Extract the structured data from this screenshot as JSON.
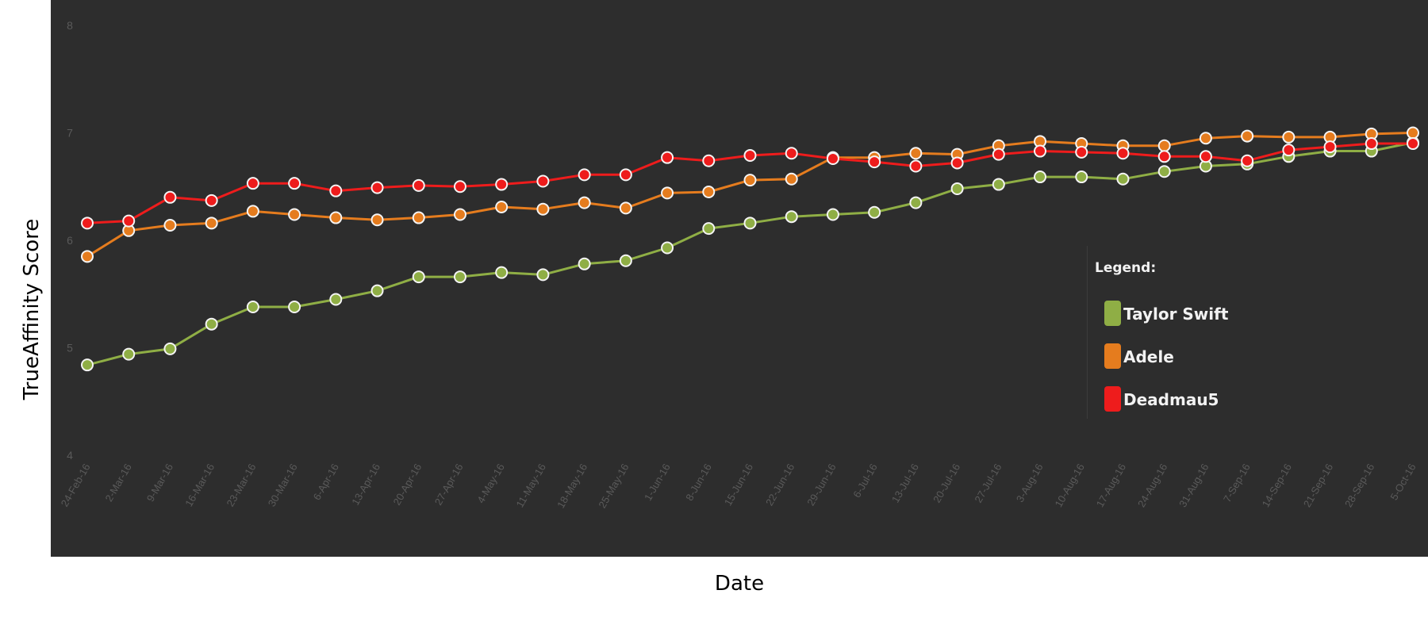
{
  "chart_data": {
    "type": "line",
    "xlabel": "Date",
    "ylabel": "TrueAffinity Score",
    "ylim": [
      4,
      8
    ],
    "yticks": [
      "4",
      "5",
      "6",
      "7",
      "8"
    ],
    "grid": false,
    "legend_title": "Legend:",
    "legend_position": "right",
    "background_color": "#2d2d2d",
    "categories": [
      "24-Feb-16",
      "2-Mar-16",
      "9-Mar-16",
      "16-Mar-16",
      "23-Mar-16",
      "30-Mar-16",
      "6-Apr-16",
      "13-Apr-16",
      "20-Apr-16",
      "27-Apr-16",
      "4-May-16",
      "11-May-16",
      "18-May-16",
      "25-May-16",
      "1-Jun-16",
      "8-Jun-16",
      "15-Jun-16",
      "22-Jun-16",
      "29-Jun-16",
      "6-Jul-16",
      "13-Jul-16",
      "20-Jul-16",
      "27-Jul-16",
      "3-Aug-16",
      "10-Aug-16",
      "17-Aug-16",
      "24-Aug-16",
      "31-Aug-16",
      "7-Sep-16",
      "14-Sep-16",
      "21-Sep-16",
      "28-Sep-16",
      "5-Oct-16"
    ],
    "series": [
      {
        "name": "Taylor Swift",
        "color": "#8fae45",
        "values": [
          4.84,
          4.94,
          4.99,
          5.22,
          5.38,
          5.38,
          5.45,
          5.53,
          5.66,
          5.66,
          5.7,
          5.68,
          5.78,
          5.81,
          5.93,
          6.11,
          6.16,
          6.22,
          6.24,
          6.26,
          6.35,
          6.48,
          6.52,
          6.59,
          6.59,
          6.57,
          6.64,
          6.69,
          6.71,
          6.78,
          6.83,
          6.83,
          6.91
        ]
      },
      {
        "name": "Adele",
        "color": "#e57c1e",
        "values": [
          5.85,
          6.09,
          6.14,
          6.16,
          6.27,
          6.24,
          6.21,
          6.19,
          6.21,
          6.24,
          6.31,
          6.29,
          6.35,
          6.3,
          6.44,
          6.45,
          6.56,
          6.57,
          6.77,
          6.77,
          6.81,
          6.8,
          6.88,
          6.92,
          6.9,
          6.88,
          6.88,
          6.95,
          6.97,
          6.96,
          6.96,
          6.99,
          7.0
        ]
      },
      {
        "name": "Deadmau5",
        "color": "#ee1c1c",
        "values": [
          6.16,
          6.18,
          6.4,
          6.37,
          6.53,
          6.53,
          6.46,
          6.49,
          6.51,
          6.5,
          6.52,
          6.55,
          6.61,
          6.61,
          6.77,
          6.74,
          6.79,
          6.81,
          6.76,
          6.73,
          6.69,
          6.72,
          6.8,
          6.83,
          6.82,
          6.81,
          6.78,
          6.78,
          6.74,
          6.84,
          6.87,
          6.9,
          6.9
        ]
      }
    ]
  }
}
